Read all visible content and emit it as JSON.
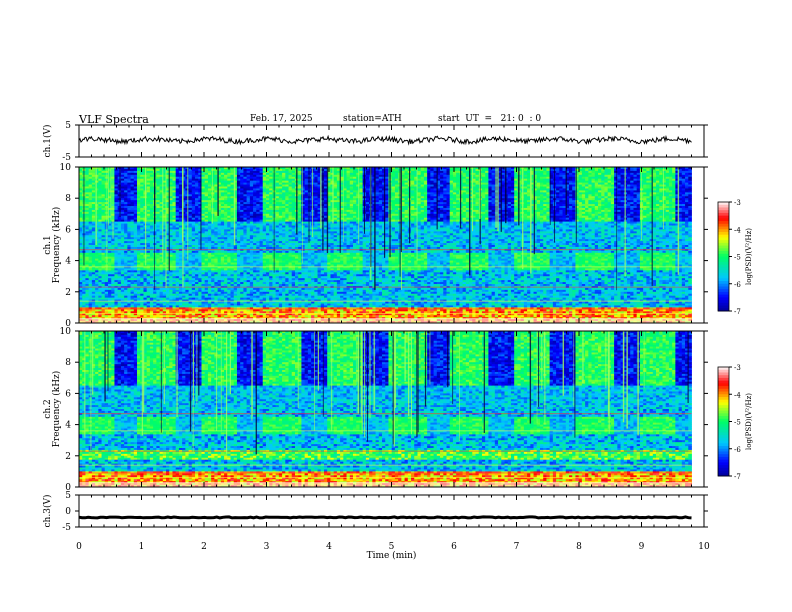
{
  "header": {
    "title": "VLF Spectra",
    "date": "Feb. 17, 2025",
    "station": "station=ATH",
    "start_ut": "start  UT  =   21: 0  : 0"
  },
  "chart_data": [
    {
      "type": "line",
      "panel": "ch1-waveform",
      "ylabel": "ch.1(V)",
      "ylim": [
        -5,
        5
      ],
      "yticks": [
        5,
        -5
      ],
      "xlim": [
        0,
        10
      ],
      "trace_level": 0.3,
      "trace_end_min": 9.8
    },
    {
      "type": "heatmap",
      "panel": "ch1-spectrogram",
      "ylabel": "ch.1\nFrequency (kHz)",
      "ylim": [
        0,
        10
      ],
      "yticks": [
        0,
        2,
        4,
        6,
        8,
        10
      ],
      "xlim": [
        0,
        10
      ],
      "data_end_min": 9.8,
      "colorbar": {
        "label": "log(PSD)(V²/Hz)",
        "range": [
          -7,
          -3
        ],
        "ticks": [
          -3,
          -4,
          -5,
          -6,
          -7
        ]
      }
    },
    {
      "type": "heatmap",
      "panel": "ch2-spectrogram",
      "ylabel": "ch.2\nFrequency (kHz)",
      "ylim": [
        0,
        10
      ],
      "yticks": [
        0,
        2,
        4,
        6,
        8,
        10
      ],
      "xlim": [
        0,
        10
      ],
      "data_end_min": 9.8,
      "colorbar": {
        "label": "log(PSD)(V²/Hz)",
        "range": [
          -7,
          -3
        ],
        "ticks": [
          -3,
          -4,
          -5,
          -6,
          -7
        ]
      }
    },
    {
      "type": "line",
      "panel": "ch3-waveform",
      "ylabel": "ch.3(V)",
      "ylim": [
        -5,
        5
      ],
      "yticks": [
        5,
        0,
        -5
      ],
      "xlim": [
        0,
        10
      ],
      "trace_level": -2.0,
      "trace_end_min": 9.8
    }
  ],
  "xaxis": {
    "label": "Time  (min)",
    "ticks": [
      0,
      1,
      2,
      3,
      4,
      5,
      6,
      7,
      8,
      9,
      10
    ]
  },
  "colors": {
    "background": "#ffffff",
    "trace": "#000000",
    "colormap": [
      "#00007a",
      "#0000ff",
      "#00c8ff",
      "#00ff60",
      "#ffff00",
      "#ff0000",
      "#ffffff"
    ]
  }
}
